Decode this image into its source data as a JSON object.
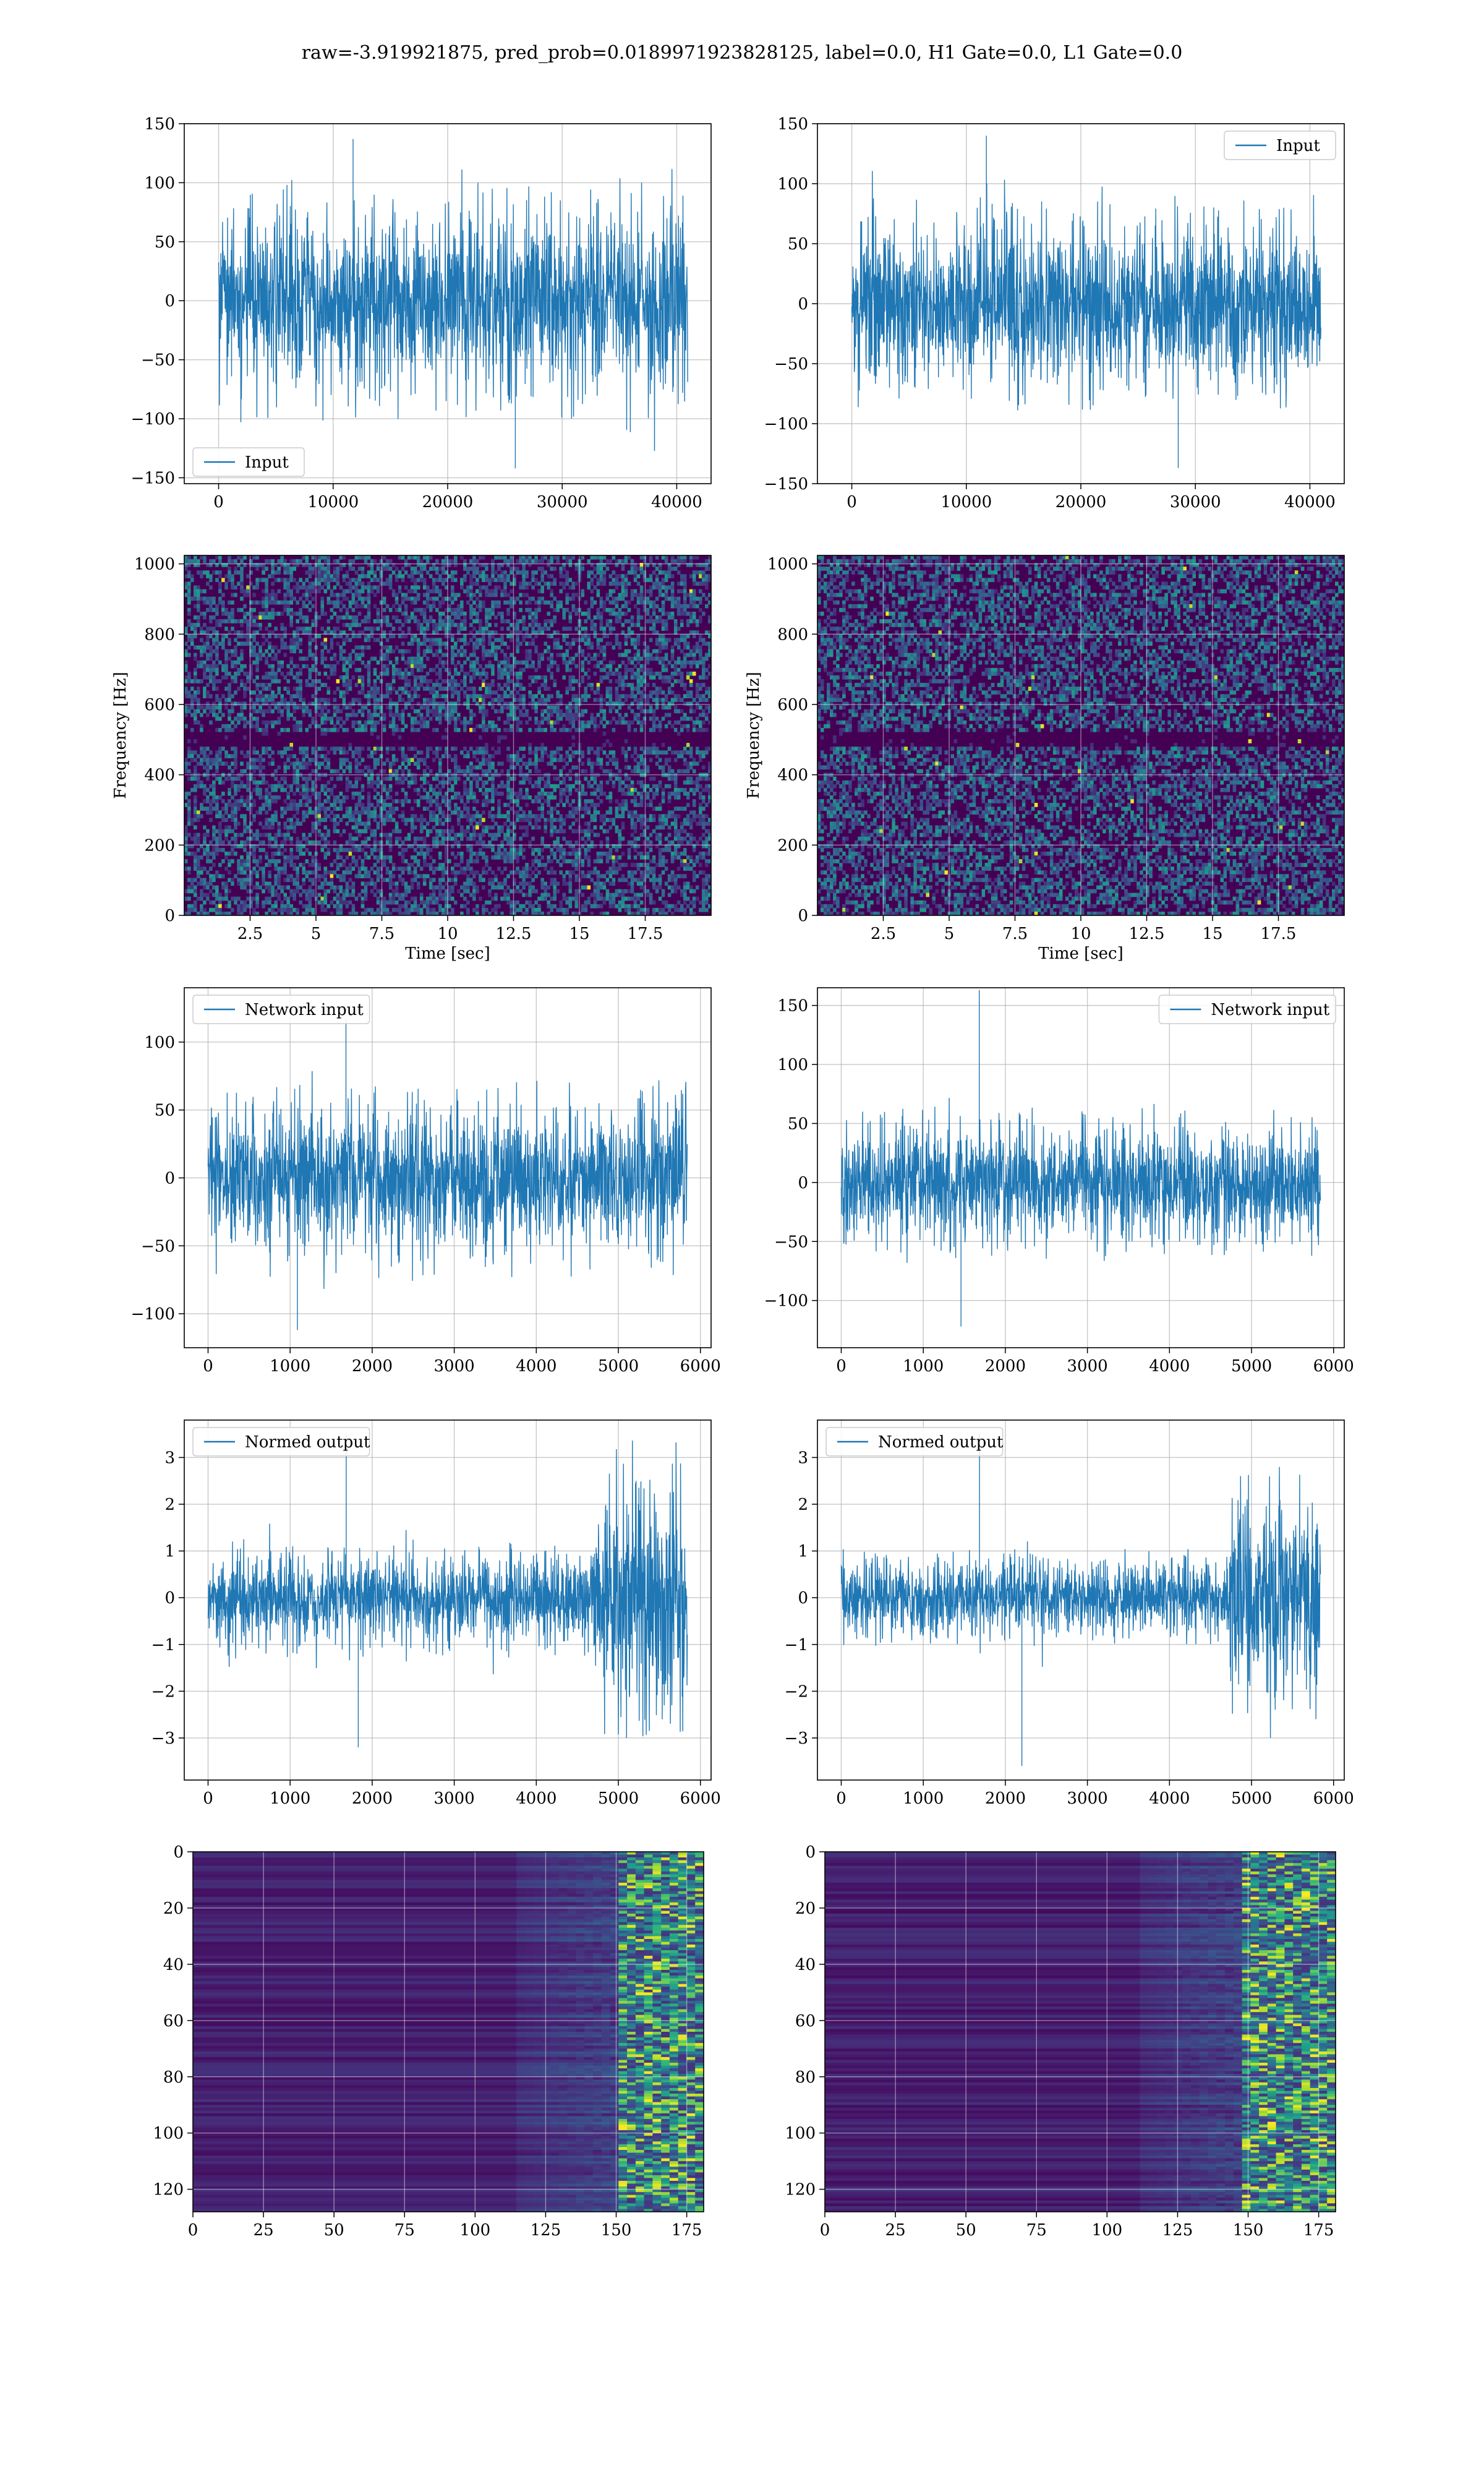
{
  "figure_title": "raw=-3.919921875, pred_prob=0.0189971923828125, label=0.0, H1 Gate=0.0, L1 Gate=0.0",
  "colors": {
    "series": "#1f77b4",
    "grid": "#b0b0b0",
    "viridis_low": "#440154",
    "viridis_mid": "#21918c",
    "viridis_high": "#fde725"
  },
  "chart_data": [
    {
      "id": "input-h1",
      "type": "line",
      "xlim": [
        -3000,
        43000
      ],
      "ylim": [
        -155,
        150
      ],
      "xticks": [
        0,
        10000,
        20000,
        30000,
        40000
      ],
      "yticks": [
        -150,
        -100,
        -50,
        0,
        50,
        100,
        150
      ],
      "series": [
        {
          "name": "Input",
          "x_range": [
            0,
            40960
          ],
          "amplitude": 45,
          "spike_max": 137,
          "spike_min": -142
        }
      ],
      "legend": "lower-left",
      "grid": true
    },
    {
      "id": "input-l1",
      "type": "line",
      "xlim": [
        -3000,
        43000
      ],
      "ylim": [
        -150,
        150
      ],
      "xticks": [
        0,
        10000,
        20000,
        30000,
        40000
      ],
      "yticks": [
        -150,
        -100,
        -50,
        0,
        50,
        100,
        150
      ],
      "series": [
        {
          "name": "Input",
          "x_range": [
            0,
            40960
          ],
          "amplitude": 40,
          "spike_max": 140,
          "spike_min": -137
        }
      ],
      "legend": "top-right",
      "grid": true
    },
    {
      "id": "spectrogram-h1",
      "type": "heatmap",
      "xlim": [
        0,
        20
      ],
      "ylim": [
        0,
        1024
      ],
      "xticks": [
        2.5,
        5.0,
        7.5,
        10.0,
        12.5,
        15.0,
        17.5
      ],
      "yticks": [
        0,
        200,
        400,
        600,
        800,
        1000
      ],
      "xlabel": "Time [sec]",
      "ylabel": "Frequency [Hz]",
      "colormap": "viridis",
      "grid": true
    },
    {
      "id": "spectrogram-l1",
      "type": "heatmap",
      "xlim": [
        0,
        20
      ],
      "ylim": [
        0,
        1024
      ],
      "xticks": [
        2.5,
        5.0,
        7.5,
        10.0,
        12.5,
        15.0,
        17.5
      ],
      "yticks": [
        0,
        200,
        400,
        600,
        800,
        1000
      ],
      "xlabel": "Time [sec]",
      "ylabel": "Frequency [Hz]",
      "colormap": "viridis",
      "grid": true
    },
    {
      "id": "network-input-h1",
      "type": "line",
      "xlim": [
        -290,
        6130
      ],
      "ylim": [
        -125,
        140
      ],
      "xticks": [
        0,
        1000,
        2000,
        3000,
        4000,
        5000,
        6000
      ],
      "yticks": [
        -100,
        -50,
        0,
        50,
        100
      ],
      "series": [
        {
          "name": "Network input",
          "x_range": [
            0,
            5840
          ],
          "amplitude": 32,
          "spike_max": 117,
          "spike_min": -112
        }
      ],
      "legend": "top-left",
      "grid": true
    },
    {
      "id": "network-input-l1",
      "type": "line",
      "xlim": [
        -290,
        6130
      ],
      "ylim": [
        -140,
        165
      ],
      "xticks": [
        0,
        1000,
        2000,
        3000,
        4000,
        5000,
        6000
      ],
      "yticks": [
        -100,
        -50,
        0,
        50,
        100,
        150
      ],
      "series": [
        {
          "name": "Network input",
          "x_range": [
            0,
            5840
          ],
          "amplitude": 28,
          "spike_max": 163,
          "spike_min": -122
        }
      ],
      "legend": "top-right",
      "grid": true
    },
    {
      "id": "normed-output-h1",
      "type": "line",
      "xlim": [
        -290,
        6130
      ],
      "ylim": [
        -3.9,
        3.8
      ],
      "xticks": [
        0,
        1000,
        2000,
        3000,
        4000,
        5000,
        6000
      ],
      "yticks": [
        -3,
        -2,
        -1,
        0,
        1,
        2,
        3
      ],
      "series": [
        {
          "name": "Normed output",
          "x_range": [
            0,
            5840
          ],
          "amplitude_early": 0.55,
          "amplitude_late": 1.4,
          "change_at": 4700,
          "spike_max": 3.5,
          "spike_min": -3.2
        }
      ],
      "legend": "top-left",
      "grid": true
    },
    {
      "id": "normed-output-l1",
      "type": "line",
      "xlim": [
        -290,
        6130
      ],
      "ylim": [
        -3.9,
        3.8
      ],
      "xticks": [
        0,
        1000,
        2000,
        3000,
        4000,
        5000,
        6000
      ],
      "yticks": [
        -3,
        -2,
        -1,
        0,
        1,
        2,
        3
      ],
      "series": [
        {
          "name": "Normed output",
          "x_range": [
            0,
            5840
          ],
          "amplitude_early": 0.45,
          "amplitude_late": 1.3,
          "change_at": 4720,
          "spike_max": 3.5,
          "spike_min": -3.6
        }
      ],
      "legend": "top-left",
      "grid": true
    },
    {
      "id": "feature-map-h1",
      "type": "heatmap",
      "xlim": [
        0,
        181
      ],
      "ylim": [
        128,
        0
      ],
      "xticks": [
        0,
        25,
        50,
        75,
        100,
        125,
        150,
        175
      ],
      "yticks": [
        0,
        20,
        40,
        60,
        80,
        100,
        120
      ],
      "rows": 128,
      "cols": 181,
      "active_from_col": 150,
      "colormap": "viridis",
      "grid": true
    },
    {
      "id": "feature-map-l1",
      "type": "heatmap",
      "xlim": [
        0,
        181
      ],
      "ylim": [
        128,
        0
      ],
      "xticks": [
        0,
        25,
        50,
        75,
        100,
        125,
        150,
        175
      ],
      "yticks": [
        0,
        20,
        40,
        60,
        80,
        100,
        120
      ],
      "rows": 128,
      "cols": 181,
      "active_from_col": 145,
      "colormap": "viridis",
      "grid": true
    }
  ]
}
